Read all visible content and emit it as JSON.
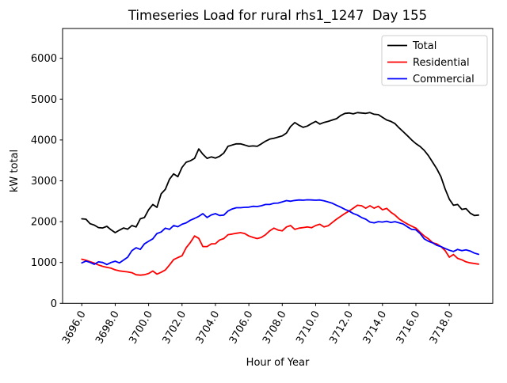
{
  "figure": {
    "title": "Timeseries Load for rural rhs1_1247  Day 155",
    "xlabel": "Hour of Year",
    "ylabel": "kW total"
  },
  "legend": {
    "items": [
      {
        "label": "Total",
        "color": "#000000"
      },
      {
        "label": "Residential",
        "color": "#ff0000"
      },
      {
        "label": "Commercial",
        "color": "#0000ff"
      }
    ]
  },
  "chart_data": {
    "type": "line",
    "title": "Timeseries Load for rural rhs1_1247  Day 155",
    "xlabel": "Hour of Year",
    "ylabel": "kW total",
    "grid": false,
    "legend_position": "upper right",
    "x_start": 3696.0,
    "x_step": 0.25,
    "xlim": [
      3694.85,
      3720.6
    ],
    "ylim": [
      0,
      6730
    ],
    "xticks": [
      3696,
      3698,
      3700,
      3702,
      3704,
      3706,
      3708,
      3710,
      3712,
      3714,
      3716,
      3718
    ],
    "xtick_labels": [
      "3696.0",
      "3698.0",
      "3700.0",
      "3702.0",
      "3704.0",
      "3706.0",
      "3708.0",
      "3710.0",
      "3712.0",
      "3714.0",
      "3716.0",
      "3718.0"
    ],
    "yticks": [
      0,
      1000,
      2000,
      3000,
      4000,
      5000,
      6000
    ],
    "ytick_labels": [
      "0",
      "1000",
      "2000",
      "3000",
      "4000",
      "5000",
      "6000"
    ],
    "series": [
      {
        "name": "Total",
        "color": "#000000",
        "values": [
          2070,
          2060,
          1950,
          1915,
          1855,
          1845,
          1885,
          1800,
          1730,
          1790,
          1845,
          1815,
          1905,
          1870,
          2070,
          2100,
          2290,
          2420,
          2350,
          2680,
          2790,
          3040,
          3170,
          3100,
          3330,
          3455,
          3490,
          3550,
          3780,
          3650,
          3550,
          3585,
          3555,
          3600,
          3680,
          3845,
          3875,
          3905,
          3905,
          3875,
          3845,
          3855,
          3845,
          3905,
          3970,
          4020,
          4040,
          4070,
          4100,
          4170,
          4330,
          4425,
          4360,
          4310,
          4340,
          4400,
          4455,
          4390,
          4430,
          4455,
          4490,
          4520,
          4600,
          4650,
          4660,
          4640,
          4670,
          4660,
          4650,
          4670,
          4630,
          4620,
          4555,
          4490,
          4455,
          4400,
          4295,
          4200,
          4100,
          4000,
          3910,
          3840,
          3745,
          3615,
          3455,
          3295,
          3100,
          2800,
          2550,
          2400,
          2420,
          2300,
          2320,
          2210,
          2150,
          2160
        ]
      },
      {
        "name": "Residential",
        "color": "#ff0000",
        "values": [
          1080,
          1055,
          1020,
          985,
          940,
          905,
          880,
          860,
          820,
          795,
          780,
          770,
          750,
          700,
          690,
          700,
          730,
          790,
          715,
          760,
          815,
          940,
          1070,
          1120,
          1165,
          1360,
          1490,
          1650,
          1590,
          1390,
          1390,
          1455,
          1460,
          1550,
          1585,
          1680,
          1695,
          1715,
          1730,
          1710,
          1650,
          1615,
          1585,
          1615,
          1680,
          1775,
          1840,
          1795,
          1775,
          1870,
          1905,
          1810,
          1840,
          1855,
          1870,
          1850,
          1905,
          1935,
          1870,
          1900,
          1980,
          2060,
          2130,
          2200,
          2260,
          2330,
          2400,
          2390,
          2330,
          2390,
          2330,
          2375,
          2290,
          2325,
          2230,
          2160,
          2065,
          2000,
          1940,
          1890,
          1840,
          1740,
          1650,
          1580,
          1485,
          1455,
          1390,
          1290,
          1130,
          1195,
          1100,
          1065,
          1015,
          990,
          975,
          960
        ]
      },
      {
        "name": "Commercial",
        "color": "#0000ff",
        "values": [
          990,
          1035,
          1000,
          955,
          1015,
          1000,
          950,
          1000,
          1030,
          990,
          1060,
          1130,
          1290,
          1360,
          1320,
          1455,
          1520,
          1580,
          1710,
          1745,
          1840,
          1810,
          1905,
          1875,
          1935,
          1970,
          2035,
          2080,
          2130,
          2195,
          2100,
          2165,
          2195,
          2150,
          2160,
          2260,
          2310,
          2340,
          2340,
          2350,
          2355,
          2375,
          2370,
          2390,
          2420,
          2420,
          2450,
          2455,
          2485,
          2515,
          2500,
          2520,
          2530,
          2525,
          2535,
          2530,
          2525,
          2530,
          2510,
          2480,
          2450,
          2400,
          2355,
          2300,
          2260,
          2200,
          2160,
          2100,
          2060,
          1990,
          1970,
          2000,
          1990,
          2010,
          1980,
          2000,
          1970,
          1940,
          1870,
          1810,
          1800,
          1710,
          1580,
          1520,
          1480,
          1420,
          1390,
          1340,
          1300,
          1270,
          1320,
          1290,
          1310,
          1280,
          1230,
          1200
        ]
      }
    ]
  }
}
